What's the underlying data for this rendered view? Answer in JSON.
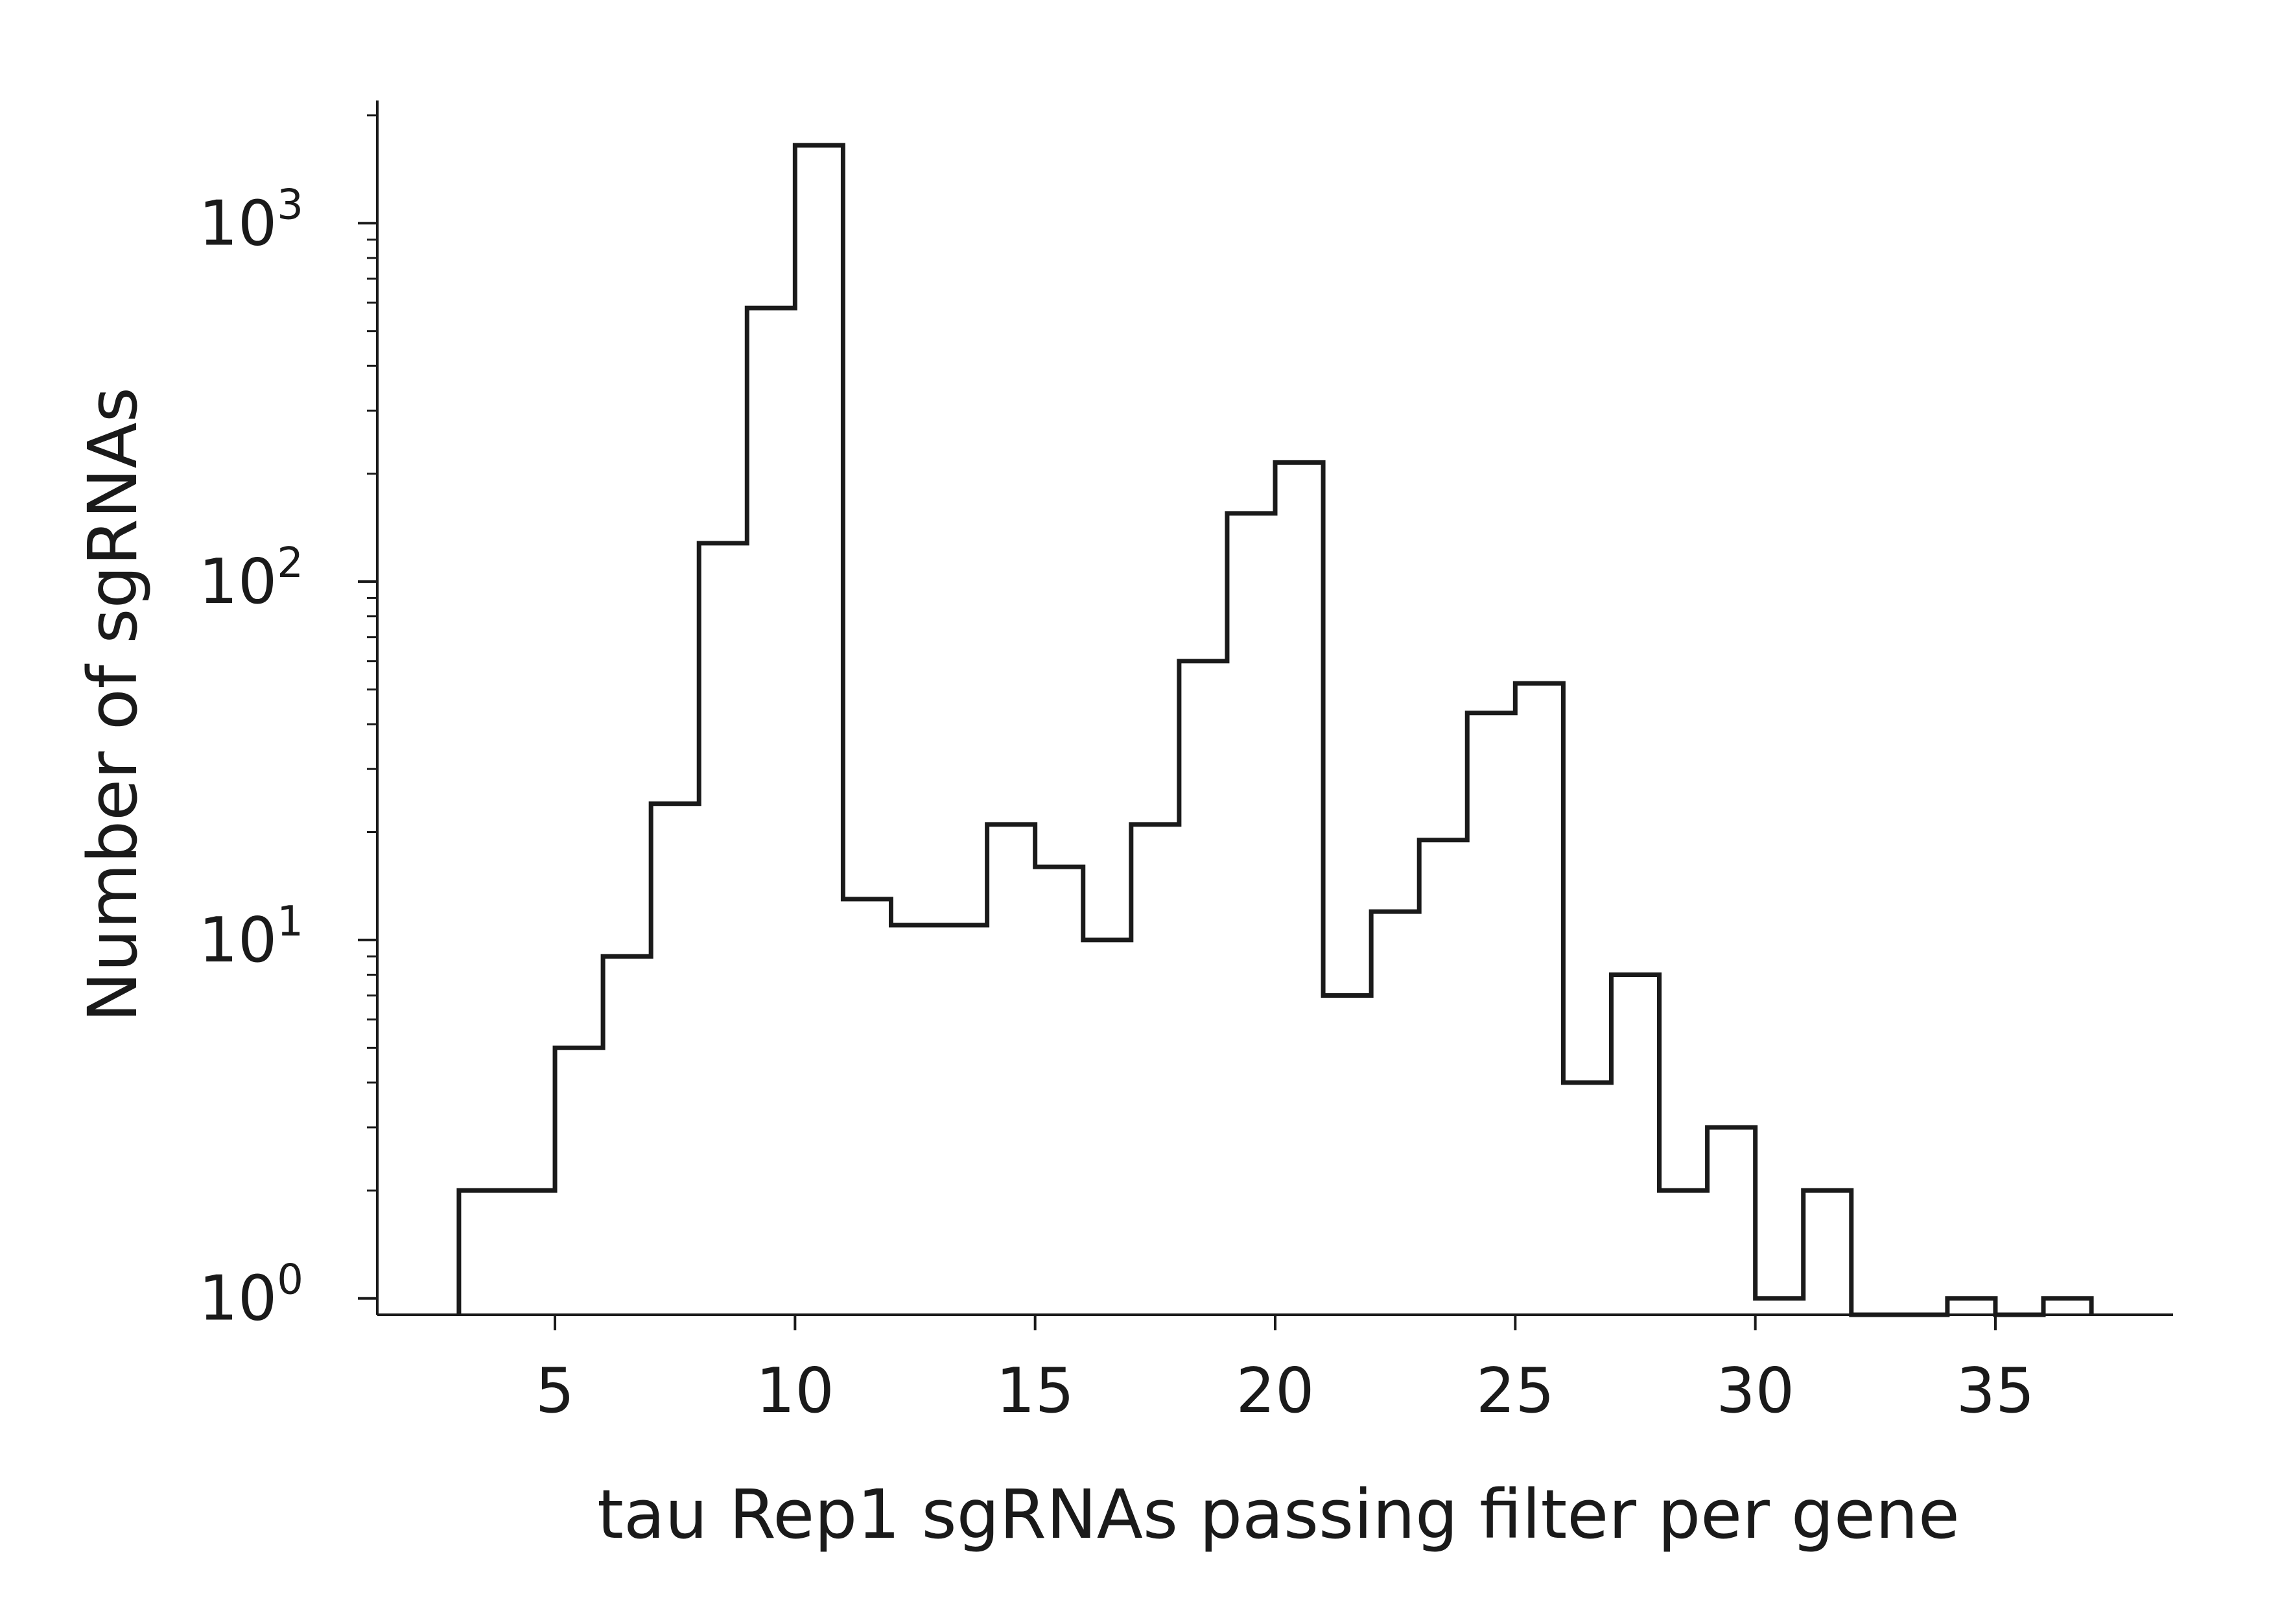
{
  "chart_data": {
    "type": "bar",
    "subtype": "step-histogram",
    "title": "",
    "xlabel": "tau Rep1 sgRNAs passing filter per gene",
    "ylabel": "Number of sgRNAs",
    "xlim": [
      1.3,
      38.7
    ],
    "ylim": [
      0.9,
      2200
    ],
    "yscale": "log",
    "grid": false,
    "x_ticks": [
      5,
      10,
      15,
      20,
      25,
      30,
      35
    ],
    "y_ticks": [
      {
        "value": 1,
        "base": "10",
        "exp": "0"
      },
      {
        "value": 10,
        "base": "10",
        "exp": "1"
      },
      {
        "value": 100,
        "base": "10",
        "exp": "2"
      },
      {
        "value": 1000,
        "base": "10",
        "exp": "3"
      }
    ],
    "bin_edges": [
      3,
      4,
      5,
      6,
      7,
      8,
      9,
      10,
      11,
      12,
      13,
      14,
      15,
      16,
      17,
      18,
      19,
      20,
      21,
      22,
      23,
      24,
      25,
      26,
      27,
      28,
      29,
      30,
      31,
      32,
      33,
      34,
      35,
      36,
      37
    ],
    "counts": [
      2,
      2,
      5,
      9,
      24,
      128,
      580,
      1650,
      13,
      11,
      11,
      21,
      16,
      10,
      21,
      60,
      155,
      215,
      7,
      12,
      19,
      43,
      52,
      4,
      8,
      2,
      3,
      1,
      2,
      0,
      0,
      1,
      0,
      1
    ],
    "line_color": "#1a1a1a"
  }
}
